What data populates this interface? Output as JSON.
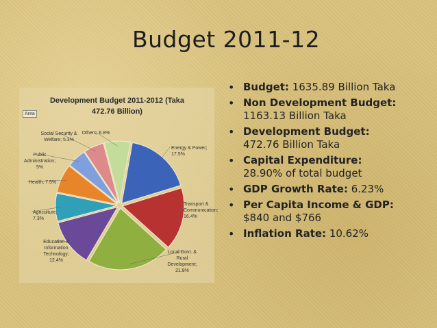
{
  "slide": {
    "title": "Budget 2011-12"
  },
  "bullets": [
    {
      "label": "Budget:",
      "value": " 1635.89 Billion Taka",
      "line2": ""
    },
    {
      "label": "Non Development Budget:",
      "value": "",
      "line2": "1163.13 Billion Taka"
    },
    {
      "label": "Development Budget:",
      "value": "",
      "line2": "472.76 Billion Taka"
    },
    {
      "label": "Capital Expenditure:",
      "value": "",
      "line2": "28.90% of total budget"
    },
    {
      "label": "GDP Growth Rate:",
      "value": " 6.23%",
      "line2": ""
    },
    {
      "label": "Per Capita Income & GDP:",
      "value": "",
      "line2": "$840 and $766"
    },
    {
      "label": "Inflation Rate:",
      "value": " 10.62%",
      "line2": ""
    }
  ],
  "bullet_glyph": "•",
  "area_tag": "Area",
  "chart_data": {
    "type": "pie",
    "title_line1": "Development Budget 2011-2012 (Taka",
    "title_line2": "472.76 Billion)",
    "slices": [
      {
        "name": "Energy & Power",
        "value": 17.5,
        "label_lines": [
          "Energy & Power;",
          "17.5%"
        ],
        "color": "#3b63b8"
      },
      {
        "name": "Transport & Communication",
        "value": 16.4,
        "label_lines": [
          "Transport &",
          "Communication;",
          "16.4%"
        ],
        "color": "#b83232"
      },
      {
        "name": "Local Govt. & Rural Development",
        "value": 21.8,
        "label_lines": [
          "Local Govt. &",
          "Rural",
          "Development;",
          "21.8%"
        ],
        "color": "#8fb040"
      },
      {
        "name": "Education & Information Technology",
        "value": 12.4,
        "label_lines": [
          "Education &",
          "Information",
          "Technology;",
          "12.4%"
        ],
        "color": "#6a4a98"
      },
      {
        "name": "Agriculture",
        "value": 7.3,
        "label_lines": [
          "Agriculture;",
          "7.3%"
        ],
        "color": "#2fa0b8"
      },
      {
        "name": "Health",
        "value": 7.5,
        "label_lines": [
          "Health; 7.5%"
        ],
        "color": "#e8842a"
      },
      {
        "name": "Public Administration",
        "value": 5,
        "label_lines": [
          "Public",
          "Administration;",
          "5%"
        ],
        "color": "#7f9fdd"
      },
      {
        "name": "Social Security & Welfare",
        "value": 5.3,
        "label_lines": [
          "Social Security &",
          "Welfare; 5.3%"
        ],
        "color": "#dd8a8a"
      },
      {
        "name": "Others",
        "value": 6.8,
        "label_lines": [
          "Others; 6.8%"
        ],
        "color": "#c4dc9a"
      }
    ]
  }
}
